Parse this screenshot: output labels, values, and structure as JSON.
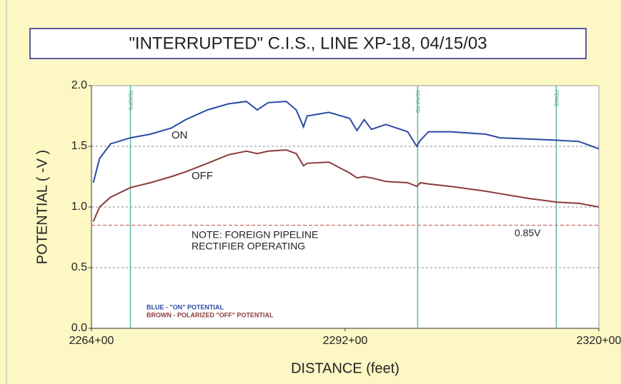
{
  "chart_data": {
    "type": "line",
    "title": "\"INTERRUPTED\" C.I.S., LINE XP-18, 04/15/03",
    "x_label": "DISTANCE (feet)",
    "y_label": "POTENTIAL ( -V )",
    "x": [
      226420,
      226490,
      226610,
      226830,
      227050,
      227280,
      227440,
      227680,
      227910,
      228110,
      228230,
      228350,
      228550,
      228660,
      228740,
      228780,
      229020,
      229250,
      229330,
      229410,
      229490,
      229650,
      229890,
      229990,
      230030,
      230120,
      230360,
      230750,
      230910,
      231230,
      231540,
      231780,
      232000
    ],
    "series": [
      {
        "name": "ON",
        "color": "#2b4aa3",
        "values": [
          1.2,
          1.4,
          1.52,
          1.57,
          1.6,
          1.65,
          1.72,
          1.8,
          1.85,
          1.87,
          1.8,
          1.86,
          1.87,
          1.8,
          1.66,
          1.75,
          1.78,
          1.73,
          1.63,
          1.72,
          1.64,
          1.68,
          1.62,
          1.5,
          1.55,
          1.62,
          1.62,
          1.6,
          1.57,
          1.56,
          1.55,
          1.54,
          1.48
        ]
      },
      {
        "name": "OFF",
        "color": "#8b3b3b",
        "values": [
          0.88,
          1.0,
          1.08,
          1.16,
          1.2,
          1.25,
          1.29,
          1.36,
          1.43,
          1.46,
          1.44,
          1.46,
          1.47,
          1.44,
          1.34,
          1.36,
          1.37,
          1.28,
          1.24,
          1.25,
          1.24,
          1.21,
          1.2,
          1.17,
          1.2,
          1.19,
          1.17,
          1.13,
          1.11,
          1.07,
          1.04,
          1.03,
          1.0
        ]
      }
    ],
    "xlim": [
      226400,
      232000
    ],
    "xticks": [
      {
        "value": 226400,
        "label": "2264+00"
      },
      {
        "value": 229200,
        "label": "2292+00"
      },
      {
        "value": 232000,
        "label": "2320+00"
      }
    ],
    "ylim": [
      0,
      2
    ],
    "yticks": [
      {
        "value": 0,
        "label": "0.0"
      },
      0.5,
      {
        "value": 1,
        "label": "1.0"
      },
      1.5,
      {
        "value": 2,
        "label": "2.0"
      }
    ],
    "grid": true,
    "markers": [
      {
        "x": 226830,
        "label": "TEXOPS"
      },
      {
        "x": 230000,
        "label": "ADAM RD"
      },
      {
        "x": 231530,
        "label": "FENCE"
      }
    ],
    "reference_line": {
      "value": 0.85,
      "label": "0.85V",
      "color": "#c0504d"
    },
    "note": [
      "NOTE: FOREIGN PIPELINE",
      "RECTIFIER OPERATING"
    ],
    "legend_notes": [
      "BLUE - \"ON\" POTENTIAL",
      "BROWN - POLARIZED \"OFF\" POTENTIAL"
    ]
  }
}
